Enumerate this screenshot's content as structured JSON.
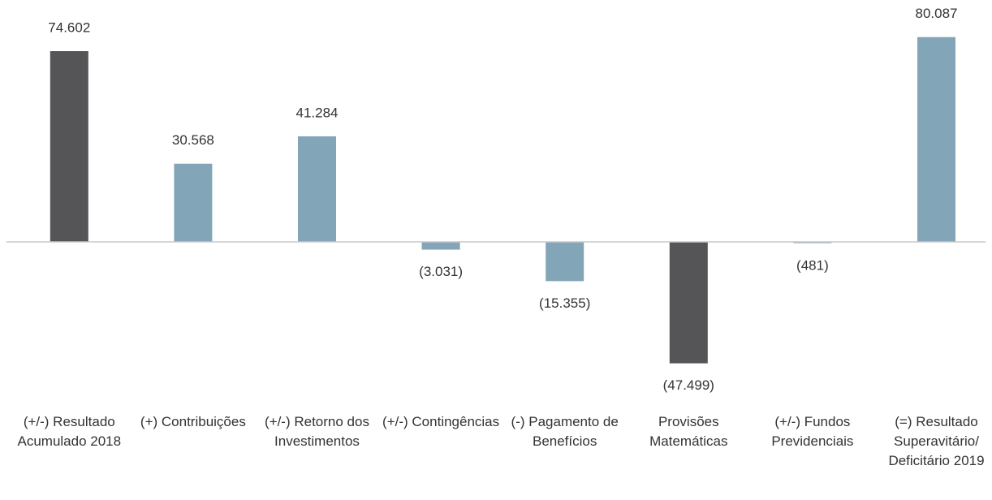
{
  "chart_data": {
    "type": "bar",
    "categories": [
      "(+/-) Resultado Acumulado 2018",
      "(+) Contribuições",
      "(+/-) Retorno dos Investimentos",
      "(+/-) Contingências",
      "(-) Pagamento de Benefícios",
      "Provisões Matemáticas",
      "(+/-) Fundos Previdenciais",
      "(=) Resultado Superavitário/ Deficitário 2019"
    ],
    "values": [
      74602,
      30568,
      41284,
      -3031,
      -15355,
      -47499,
      -481,
      80087
    ],
    "value_labels": [
      "74.602",
      "30.568",
      "41.284",
      "(3.031)",
      "(15.355)",
      "(47.499)",
      "(481)",
      "80.087"
    ],
    "colors": [
      "#555557",
      "#82a6b8",
      "#82a6b8",
      "#82a6b8",
      "#82a6b8",
      "#555557",
      "#82a6b8",
      "#82a6b8"
    ],
    "ylim": [
      -50000,
      90000
    ],
    "grid": false
  }
}
